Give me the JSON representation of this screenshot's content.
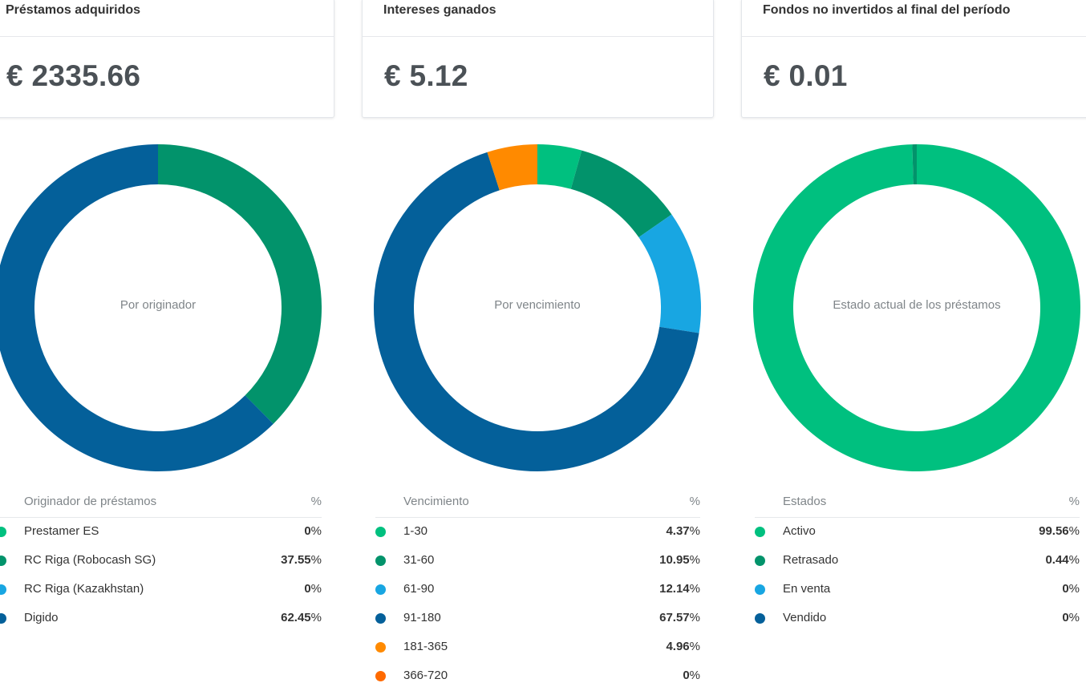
{
  "cards": [
    {
      "title": "Préstamos adquiridos",
      "value": "€ 2335.66"
    },
    {
      "title": "Intereses ganados",
      "value": "€ 5.12"
    },
    {
      "title": "Fondos no invertidos al final del período",
      "value": "€ 0.01"
    }
  ],
  "charts": [
    {
      "center_label": "Por originador",
      "legend_header": "Originador de préstamos",
      "pct_header": "%",
      "items": [
        {
          "label": "Prestamer ES",
          "value": "0",
          "unit": "%",
          "color": "#00c07f"
        },
        {
          "label": "RC Riga (Robocash SG)",
          "value": "37.55",
          "unit": "%",
          "color": "#02936b"
        },
        {
          "label": "RC Riga (Kazakhstan)",
          "value": "0",
          "unit": "%",
          "color": "#18a6e2"
        },
        {
          "label": "Digido",
          "value": "62.45",
          "unit": "%",
          "color": "#04609a"
        }
      ]
    },
    {
      "center_label": "Por vencimiento",
      "legend_header": "Vencimiento",
      "pct_header": "%",
      "items": [
        {
          "label": "1-30",
          "value": "4.37",
          "unit": "%",
          "color": "#00c07f"
        },
        {
          "label": "31-60",
          "value": "10.95",
          "unit": "%",
          "color": "#02936b"
        },
        {
          "label": "61-90",
          "value": "12.14",
          "unit": "%",
          "color": "#18a6e2"
        },
        {
          "label": "91-180",
          "value": "67.57",
          "unit": "%",
          "color": "#04609a"
        },
        {
          "label": "181-365",
          "value": "4.96",
          "unit": "%",
          "color": "#ff8a00"
        },
        {
          "label": "366-720",
          "value": "0",
          "unit": "%",
          "color": "#ff6a00"
        }
      ]
    },
    {
      "center_label": "Estado actual de los préstamos",
      "legend_header": "Estados",
      "pct_header": "%",
      "items": [
        {
          "label": "Activo",
          "value": "99.56",
          "unit": "%",
          "color": "#00c07f"
        },
        {
          "label": "Retrasado",
          "value": "0.44",
          "unit": "%",
          "color": "#02936b"
        },
        {
          "label": "En venta",
          "value": "0",
          "unit": "%",
          "color": "#18a6e2"
        },
        {
          "label": "Vendido",
          "value": "0",
          "unit": "%",
          "color": "#04609a"
        }
      ]
    }
  ]
}
